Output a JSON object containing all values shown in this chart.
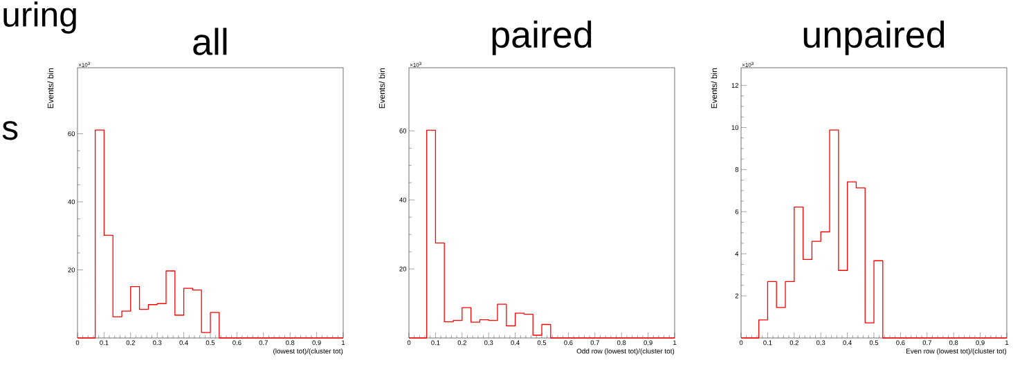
{
  "chart_data": [
    {
      "type": "histogram",
      "title": "all",
      "xlabel": "(lowest tot)/(cluster tot)",
      "ylabel": "Events/ bin",
      "annotations": [
        "×10$^{3}$",
        "uring",
        "s"
      ],
      "color": "#ff0000",
      "bins": [
        0,
        0.0333,
        0.0667,
        0.1,
        0.1333,
        0.1667,
        0.2,
        0.2333,
        0.2667,
        0.3,
        0.3333,
        0.3667,
        0.4,
        0.4333,
        0.4667,
        0.5,
        0.5333,
        0.5667,
        0.6,
        0.6333,
        0.6667,
        0.7,
        0.7333,
        0.7667,
        0.8,
        0.8333,
        0.8667,
        0.9,
        0.9333,
        0.9667,
        1
      ],
      "values": [
        0,
        0,
        61.1,
        30.2,
        6.2,
        7.9,
        15.1,
        8.4,
        9.8,
        10.1,
        19.7,
        6.7,
        14.6,
        14.1,
        1.6,
        7.5,
        0,
        0,
        0,
        0,
        0,
        0,
        0,
        0,
        0,
        0,
        0,
        0,
        0,
        0
      ],
      "xlim": [
        0,
        1
      ],
      "xticks": [
        0,
        0.1,
        0.2,
        0.3,
        0.4,
        0.5,
        0.6,
        0.7,
        0.8,
        0.9,
        1
      ],
      "ylim": [
        0,
        79.4
      ],
      "yticks": [
        20,
        40,
        60
      ]
    },
    {
      "type": "histogram",
      "title": "paired",
      "xlabel": "Odd row (lowest tot)/(cluster tot)",
      "ylabel": "Events/ bin",
      "annotations": [
        "×10$^{3}$"
      ],
      "color": "#ff0000",
      "bins": [
        0,
        0.0333,
        0.0667,
        0.1,
        0.1333,
        0.1667,
        0.2,
        0.2333,
        0.2667,
        0.3,
        0.3333,
        0.3667,
        0.4,
        0.4333,
        0.4667,
        0.5,
        0.5333,
        0.5667,
        0.6,
        0.6333,
        0.6667,
        0.7,
        0.7333,
        0.7667,
        0.8,
        0.8333,
        0.8667,
        0.9,
        0.9333,
        0.9667,
        1
      ],
      "values": [
        0,
        0,
        60.2,
        27.5,
        4.7,
        5.1,
        8.8,
        4.6,
        5.3,
        5.1,
        9.8,
        3.5,
        7.2,
        6.9,
        0.8,
        3.9,
        0,
        0,
        0,
        0,
        0,
        0,
        0,
        0,
        0,
        0,
        0,
        0,
        0,
        0
      ],
      "xlim": [
        0,
        1
      ],
      "xticks": [
        0,
        0.1,
        0.2,
        0.3,
        0.4,
        0.5,
        0.6,
        0.7,
        0.8,
        0.9,
        1
      ],
      "ylim": [
        0,
        78.3
      ],
      "yticks": [
        20,
        40,
        60
      ]
    },
    {
      "type": "histogram",
      "title": "unpaired",
      "xlabel": "Even row (lowest tot)/(cluster tot)",
      "ylabel": "Events/ bin",
      "annotations": [
        "×10$^{3}$"
      ],
      "color": "#ff0000",
      "bins": [
        0,
        0.0333,
        0.0667,
        0.1,
        0.1333,
        0.1667,
        0.2,
        0.2333,
        0.2667,
        0.3,
        0.3333,
        0.3667,
        0.4,
        0.4333,
        0.4667,
        0.5,
        0.5333,
        0.5667,
        0.6,
        0.6333,
        0.6667,
        0.7,
        0.7333,
        0.7667,
        0.8,
        0.8333,
        0.8667,
        0.9,
        0.9333,
        0.9667,
        1
      ],
      "values": [
        0,
        0,
        0.86,
        2.68,
        1.45,
        2.68,
        6.22,
        3.73,
        4.59,
        5.04,
        9.88,
        3.21,
        7.42,
        7.13,
        0.72,
        3.67,
        0,
        0,
        0,
        0,
        0,
        0,
        0,
        0,
        0,
        0,
        0,
        0,
        0,
        0
      ],
      "xlim": [
        0,
        1
      ],
      "xticks": [
        0,
        0.1,
        0.2,
        0.3,
        0.4,
        0.5,
        0.6,
        0.7,
        0.8,
        0.9,
        1
      ],
      "ylim": [
        0,
        12.84
      ],
      "yticks": [
        2,
        4,
        6,
        8,
        10,
        12
      ]
    }
  ]
}
